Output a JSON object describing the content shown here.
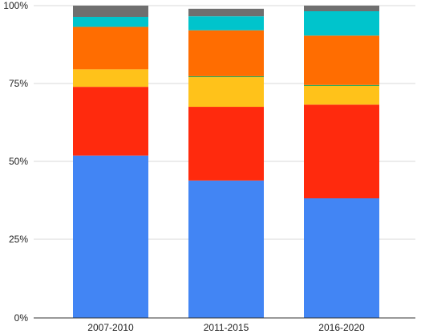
{
  "chart_data": {
    "type": "bar",
    "stacked": true,
    "categories": [
      "2007-2010",
      "2011-2015",
      "2016-2020"
    ],
    "y_ticks": [
      "0%",
      "25%",
      "50%",
      "75%",
      "100%"
    ],
    "ylim": [
      0,
      100
    ],
    "grid": true,
    "legend": "none",
    "title": "",
    "xlabel": "",
    "ylabel": "",
    "series": [
      {
        "color": "#4285f4",
        "values": [
          52,
          44,
          38.3
        ]
      },
      {
        "color": "#ff2a0d",
        "values": [
          22,
          23.6,
          30
        ]
      },
      {
        "color": "#ffc21a",
        "values": [
          5.6,
          9.5,
          6
        ]
      },
      {
        "color": "#34a853",
        "values": [
          0,
          0.3,
          0.3
        ]
      },
      {
        "color": "#ff6d01",
        "values": [
          13.6,
          14.7,
          15.8
        ]
      },
      {
        "color": "#00c4cc",
        "values": [
          3.2,
          4.5,
          7.8
        ]
      },
      {
        "color": "#6f6f6f",
        "values": [
          3.6,
          2.4,
          1.8
        ]
      }
    ]
  }
}
